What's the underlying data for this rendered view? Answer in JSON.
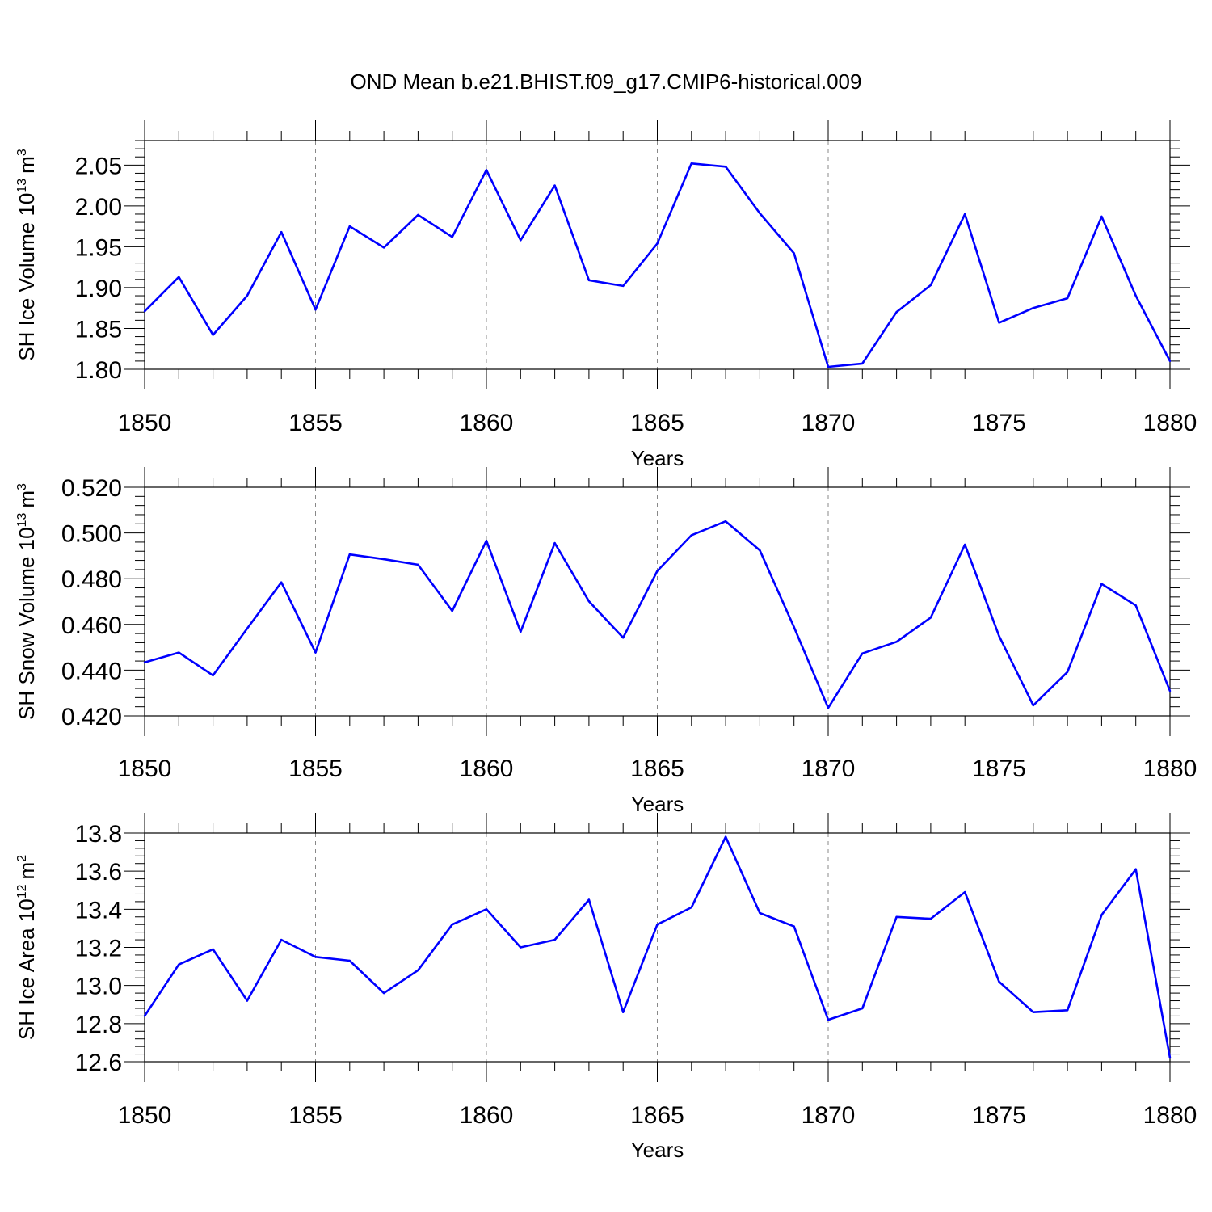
{
  "title": "OND Mean b.e21.BHIST.f09_g17.CMIP6-historical.009",
  "line_color": "#0000ff",
  "chart_data": [
    {
      "type": "line",
      "ylabel": "SH Ice Volume 10",
      "ylabel_exp": "13",
      "ylabel_unit": "m",
      "ylabel_unit_exp": "3",
      "xlabel": "Years",
      "xlim": [
        1850,
        1880
      ],
      "ylim": [
        1.8,
        2.08
      ],
      "xticks": [
        "1850",
        "1855",
        "1860",
        "1865",
        "1870",
        "1875",
        "1880"
      ],
      "yticks": [
        "1.80",
        "1.85",
        "1.90",
        "1.95",
        "2.00",
        "2.05"
      ],
      "grid": "dashed vertical at major x ticks",
      "x": [
        1850,
        1851,
        1852,
        1853,
        1854,
        1855,
        1856,
        1857,
        1858,
        1859,
        1860,
        1861,
        1862,
        1863,
        1864,
        1865,
        1866,
        1867,
        1868,
        1869,
        1870,
        1871,
        1872,
        1873,
        1874,
        1875,
        1876,
        1877,
        1878,
        1879,
        1880
      ],
      "values": [
        1.871,
        1.913,
        1.842,
        1.89,
        1.968,
        1.873,
        1.975,
        1.949,
        1.989,
        1.962,
        2.044,
        1.958,
        2.025,
        1.909,
        1.902,
        1.954,
        2.052,
        2.048,
        1.991,
        1.942,
        1.803,
        1.807,
        1.87,
        1.903,
        1.99,
        1.857,
        1.875,
        1.887,
        1.987,
        1.89,
        1.81
      ]
    },
    {
      "type": "line",
      "ylabel": "SH Snow Volume 10",
      "ylabel_exp": "13",
      "ylabel_unit": "m",
      "ylabel_unit_exp": "3",
      "xlabel": "Years",
      "xlim": [
        1850,
        1880
      ],
      "ylim": [
        0.42,
        0.52
      ],
      "xticks": [
        "1850",
        "1855",
        "1860",
        "1865",
        "1870",
        "1875",
        "1880"
      ],
      "yticks": [
        "0.420",
        "0.440",
        "0.460",
        "0.480",
        "0.500",
        "0.520"
      ],
      "grid": "dashed vertical at major x ticks",
      "x": [
        1850,
        1851,
        1852,
        1853,
        1854,
        1855,
        1856,
        1857,
        1858,
        1859,
        1860,
        1861,
        1862,
        1863,
        1864,
        1865,
        1866,
        1867,
        1868,
        1869,
        1870,
        1871,
        1872,
        1873,
        1874,
        1875,
        1876,
        1877,
        1878,
        1879,
        1880
      ],
      "values": [
        0.4434,
        0.4477,
        0.4377,
        0.4582,
        0.4784,
        0.4477,
        0.4906,
        0.4885,
        0.4861,
        0.4659,
        0.4966,
        0.4568,
        0.4956,
        0.4701,
        0.4542,
        0.4834,
        0.499,
        0.5051,
        0.4924,
        0.4588,
        0.4235,
        0.4473,
        0.4524,
        0.463,
        0.4949,
        0.4549,
        0.4246,
        0.4392,
        0.4777,
        0.4683,
        0.4309
      ]
    },
    {
      "type": "line",
      "ylabel": "SH Ice Area 10",
      "ylabel_exp": "12",
      "ylabel_unit": "m",
      "ylabel_unit_exp": "2",
      "xlabel": "Years",
      "xlim": [
        1850,
        1880
      ],
      "ylim": [
        12.6,
        13.8
      ],
      "xticks": [
        "1850",
        "1855",
        "1860",
        "1865",
        "1870",
        "1875",
        "1880"
      ],
      "yticks": [
        "12.6",
        "12.8",
        "13.0",
        "13.2",
        "13.4",
        "13.6",
        "13.8"
      ],
      "grid": "dashed vertical at major x ticks",
      "x": [
        1850,
        1851,
        1852,
        1853,
        1854,
        1855,
        1856,
        1857,
        1858,
        1859,
        1860,
        1861,
        1862,
        1863,
        1864,
        1865,
        1866,
        1867,
        1868,
        1869,
        1870,
        1871,
        1872,
        1873,
        1874,
        1875,
        1876,
        1877,
        1878,
        1879,
        1880
      ],
      "values": [
        12.84,
        13.11,
        13.19,
        12.92,
        13.24,
        13.15,
        13.13,
        12.96,
        13.08,
        13.32,
        13.4,
        13.2,
        13.24,
        13.45,
        12.86,
        13.32,
        13.41,
        13.78,
        13.38,
        13.31,
        12.82,
        12.88,
        13.36,
        13.35,
        13.49,
        13.02,
        12.86,
        12.87,
        13.37,
        13.61,
        12.62
      ]
    }
  ]
}
